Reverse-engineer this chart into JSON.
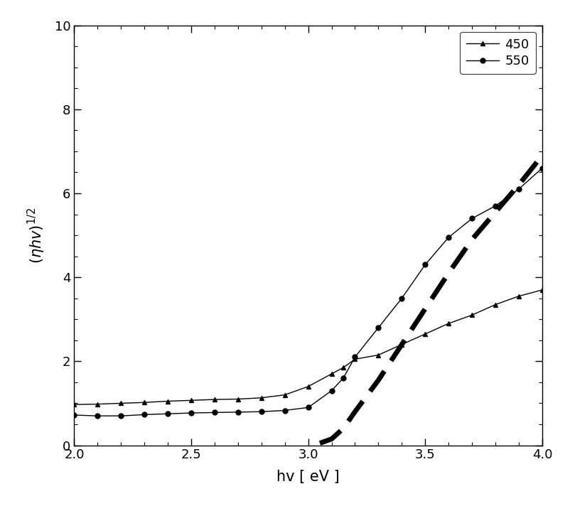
{
  "title": "",
  "xlabel": "hv [ eV ]",
  "ylabel": "(η hv)^1/2",
  "xlim": [
    2.0,
    4.0
  ],
  "ylim": [
    0,
    10
  ],
  "xticks": [
    2.0,
    2.5,
    3.0,
    3.5,
    4.0
  ],
  "yticks": [
    0,
    2,
    4,
    6,
    8,
    10
  ],
  "legend_labels": [
    "450",
    "550"
  ],
  "background_color": "#ffffff",
  "line_color": "#000000",
  "dashed_line_color": "#000000",
  "series_450": {
    "x": [
      2.0,
      2.1,
      2.2,
      2.3,
      2.4,
      2.5,
      2.6,
      2.7,
      2.8,
      2.9,
      3.0,
      3.1,
      3.15,
      3.2,
      3.3,
      3.4,
      3.5,
      3.6,
      3.7,
      3.8,
      3.9,
      4.0
    ],
    "y": [
      0.97,
      0.98,
      1.0,
      1.02,
      1.05,
      1.07,
      1.09,
      1.1,
      1.13,
      1.2,
      1.4,
      1.7,
      1.85,
      2.05,
      2.15,
      2.4,
      2.65,
      2.9,
      3.1,
      3.35,
      3.55,
      3.7
    ]
  },
  "series_550": {
    "x": [
      2.0,
      2.1,
      2.2,
      2.3,
      2.4,
      2.5,
      2.6,
      2.7,
      2.8,
      2.9,
      3.0,
      3.1,
      3.15,
      3.2,
      3.3,
      3.4,
      3.5,
      3.6,
      3.7,
      3.8,
      3.9,
      4.0
    ],
    "y": [
      0.72,
      0.7,
      0.7,
      0.73,
      0.75,
      0.77,
      0.78,
      0.79,
      0.8,
      0.83,
      0.9,
      1.3,
      1.6,
      2.1,
      2.8,
      3.5,
      4.3,
      4.95,
      5.4,
      5.7,
      6.1,
      6.6
    ]
  },
  "dashed_line": {
    "x": [
      3.05,
      3.1,
      3.15,
      3.2,
      3.3,
      3.4,
      3.5,
      3.6,
      3.7,
      3.8,
      3.9,
      4.0
    ],
    "y": [
      0.05,
      0.15,
      0.4,
      0.8,
      1.55,
      2.4,
      3.25,
      4.1,
      4.9,
      5.55,
      6.2,
      6.9
    ]
  }
}
